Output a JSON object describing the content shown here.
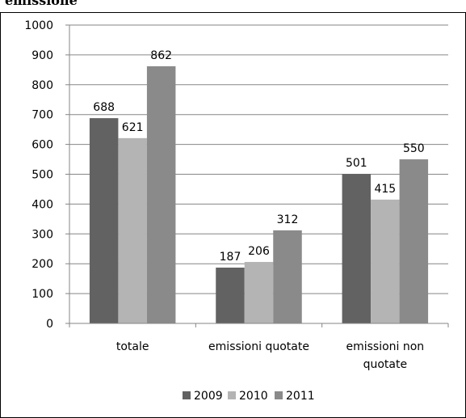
{
  "header": {
    "clipped_title": "emissione"
  },
  "chart_data": {
    "type": "bar",
    "categories": [
      "totale",
      "emissioni quotate",
      "emissioni non quotate"
    ],
    "category_lines": [
      [
        "totale"
      ],
      [
        "emissioni quotate"
      ],
      [
        "emissioni non",
        "quotate"
      ]
    ],
    "series": [
      {
        "name": "2009",
        "values": [
          688,
          187,
          501
        ],
        "color": "#626262"
      },
      {
        "name": "2010",
        "values": [
          621,
          206,
          415
        ],
        "color": "#b4b4b4"
      },
      {
        "name": "2011",
        "values": [
          862,
          312,
          550
        ],
        "color": "#8a8a8a"
      }
    ],
    "ylim": [
      0,
      1000
    ],
    "yticks": [
      0,
      100,
      200,
      300,
      400,
      500,
      600,
      700,
      800,
      900,
      1000
    ],
    "grid": true,
    "legend_position": "bottom",
    "title": "",
    "xlabel": "",
    "ylabel": ""
  }
}
